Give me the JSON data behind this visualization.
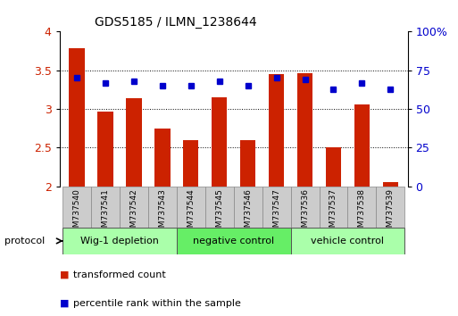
{
  "title": "GDS5185 / ILMN_1238644",
  "samples": [
    "GSM737540",
    "GSM737541",
    "GSM737542",
    "GSM737543",
    "GSM737544",
    "GSM737545",
    "GSM737546",
    "GSM737547",
    "GSM737536",
    "GSM737537",
    "GSM737538",
    "GSM737539"
  ],
  "transformed_count": [
    3.78,
    2.97,
    3.14,
    2.75,
    2.6,
    3.15,
    2.6,
    3.45,
    3.46,
    2.5,
    3.06,
    2.06
  ],
  "percentile_rank": [
    70,
    67,
    68,
    65,
    65,
    68,
    65,
    70,
    69,
    63,
    67,
    63
  ],
  "ylim_left": [
    2.0,
    4.0
  ],
  "ylim_right": [
    0,
    100
  ],
  "yticks_left": [
    2.0,
    2.5,
    3.0,
    3.5,
    4.0
  ],
  "ytick_labels_left": [
    "2",
    "2.5",
    "3",
    "3.5",
    "4"
  ],
  "yticks_right": [
    0,
    25,
    50,
    75,
    100
  ],
  "ytick_labels_right": [
    "0",
    "25",
    "50",
    "75",
    "100%"
  ],
  "bar_color": "#cc2200",
  "dot_color": "#0000cc",
  "bar_width": 0.55,
  "grid_lines": [
    2.5,
    3.0,
    3.5
  ],
  "tick_label_color_left": "#cc2200",
  "tick_label_color_right": "#0000cc",
  "legend_red_label": "transformed count",
  "legend_blue_label": "percentile rank within the sample",
  "protocol_label": "protocol",
  "group_bg_color": "#cccccc",
  "groups": [
    {
      "label": "Wig-1 depletion",
      "start": 0,
      "end": 3,
      "color": "#aaffaa"
    },
    {
      "label": "negative control",
      "start": 4,
      "end": 7,
      "color": "#66ee66"
    },
    {
      "label": "vehicle control",
      "start": 8,
      "end": 11,
      "color": "#aaffaa"
    }
  ]
}
